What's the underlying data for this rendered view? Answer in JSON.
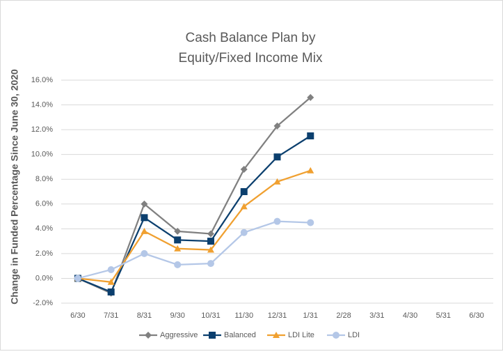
{
  "chart_data": {
    "type": "line",
    "title": [
      "Cash Balance Plan by",
      "Equity/Fixed Income Mix"
    ],
    "y_label": "Change in Funded Percentage Since June 30, 2020",
    "categories": [
      "6/30",
      "7/31",
      "8/31",
      "9/30",
      "10/31",
      "11/30",
      "12/31",
      "1/31",
      "2/28",
      "3/31",
      "4/30",
      "5/31",
      "6/30"
    ],
    "series": [
      {
        "name": "Aggressive",
        "color": "#808080",
        "marker": "diamond",
        "values": [
          0,
          -1.2,
          6.0,
          3.8,
          3.6,
          8.8,
          12.3,
          14.6,
          null,
          null,
          null,
          null,
          null
        ]
      },
      {
        "name": "Balanced",
        "color": "#0b3f6e",
        "marker": "square",
        "values": [
          0,
          -1.1,
          4.9,
          3.1,
          3.0,
          7.0,
          9.8,
          11.5,
          null,
          null,
          null,
          null,
          null
        ]
      },
      {
        "name": "LDI Lite",
        "color": "#f0a030",
        "marker": "triangle",
        "values": [
          0,
          -0.3,
          3.8,
          2.4,
          2.3,
          5.8,
          7.8,
          8.7,
          null,
          null,
          null,
          null,
          null
        ]
      },
      {
        "name": "LDI",
        "color": "#b4c7e7",
        "marker": "circle",
        "values": [
          0,
          0.7,
          2.0,
          1.1,
          1.2,
          3.7,
          4.6,
          4.5,
          null,
          null,
          null,
          null,
          null
        ]
      }
    ],
    "ylim": [
      -2,
      16
    ],
    "yticks": [
      {
        "value": -2,
        "label": "-2.0%"
      },
      {
        "value": 0,
        "label": "0.0%"
      },
      {
        "value": 2,
        "label": "2.0%"
      },
      {
        "value": 4,
        "label": "4.0%"
      },
      {
        "value": 6,
        "label": "6.0%"
      },
      {
        "value": 8,
        "label": "8.0%"
      },
      {
        "value": 10,
        "label": "10.0%"
      },
      {
        "value": 12,
        "label": "12.0%"
      },
      {
        "value": 14,
        "label": "14.0%"
      },
      {
        "value": 16,
        "label": "16.0%"
      }
    ],
    "grid": true,
    "legend": "bottom"
  }
}
